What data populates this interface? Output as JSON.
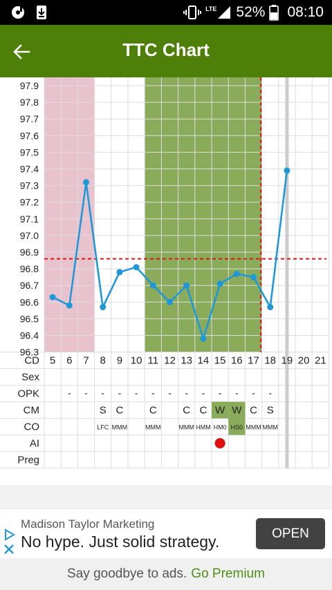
{
  "status_bar": {
    "battery": "52%",
    "time": "08:10",
    "network": "LTE"
  },
  "app_bar": {
    "title": "TTC Chart",
    "back_icon": "arrow-left-icon"
  },
  "colors": {
    "brand": "#4e8009",
    "menstruation": "#e8c3cd",
    "fertile_window": "#8aac5a",
    "line": "#1f98d8",
    "coverline": "#e01010",
    "ai_dot": "#e01010",
    "premium": "#4e8f14"
  },
  "chart_data": {
    "type": "line",
    "y_ticks": [
      "97.9",
      "97.8",
      "97.7",
      "97.6",
      "97.5",
      "97.4",
      "97.3",
      "97.2",
      "97.1",
      "97.0",
      "96.9",
      "96.8",
      "96.7",
      "96.6",
      "96.5",
      "96.4",
      "96.3"
    ],
    "ylim": [
      96.3,
      97.95
    ],
    "x": [
      5,
      6,
      7,
      8,
      9,
      10,
      11,
      12,
      13,
      14,
      15,
      16,
      17,
      18,
      19,
      20,
      21
    ],
    "series": [
      {
        "x": [
          5,
          6,
          7,
          8,
          9,
          10,
          11,
          12,
          13,
          14,
          15,
          16,
          17,
          18,
          19
        ],
        "values": [
          96.63,
          96.58,
          97.32,
          96.57,
          96.78,
          96.81,
          96.7,
          96.6,
          96.7,
          96.38,
          96.71,
          96.77,
          96.75,
          96.57,
          97.39
        ]
      }
    ],
    "coverline": 96.86,
    "ovulation_day": 18,
    "menstruation_days": [
      5,
      7
    ],
    "fertile_days": [
      11,
      17
    ],
    "current_day": 19,
    "grid": true,
    "rows": {
      "labels": [
        "CD",
        "Sex",
        "OPK",
        "CM",
        "CO",
        "AI",
        "Preg"
      ],
      "sex": [
        "",
        "",
        "",
        "",
        "",
        "",
        "",
        "",
        "",
        "",
        "",
        "",
        "",
        "",
        "",
        "",
        ""
      ],
      "opk": [
        "",
        "-",
        "-",
        "-",
        "-",
        "-",
        "-",
        "-",
        "-",
        "-",
        "-",
        "-",
        "-",
        "-",
        "",
        "",
        ""
      ],
      "cm": [
        "",
        "",
        "",
        "S",
        "C",
        "",
        "C",
        "",
        "C",
        "C",
        "W",
        "W",
        "C",
        "S",
        "",
        "",
        ""
      ],
      "cm_highlight": [
        10,
        11
      ],
      "co": [
        "",
        "",
        "",
        "LFC",
        "MMM",
        "",
        "MMM",
        "",
        "MMM",
        "HMM",
        "HM0",
        "HS0",
        "MMM",
        "MMM",
        "",
        "",
        ""
      ],
      "ai_days": [
        15
      ]
    }
  },
  "ad": {
    "advertiser": "Madison Taylor Marketing",
    "headline": "No hype. Just solid strategy.",
    "cta": "OPEN"
  },
  "premium": {
    "text": "Say goodbye to ads.",
    "link": "Go Premium"
  }
}
